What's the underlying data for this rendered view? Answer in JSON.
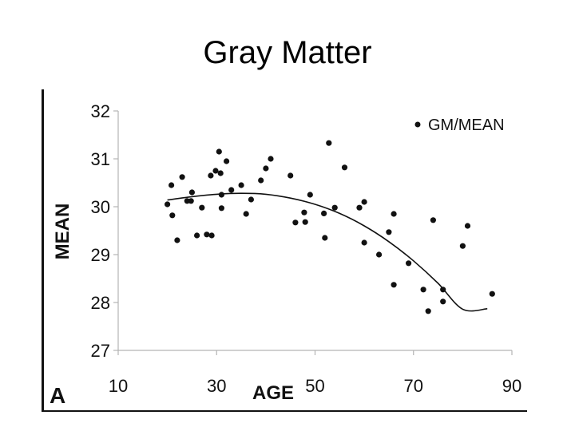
{
  "slide": {
    "title": "Gray Matter"
  },
  "panel_letter": "A",
  "chart_data": {
    "type": "scatter",
    "xlabel": "AGE",
    "ylabel": "MEAN",
    "xlim": [
      10,
      90
    ],
    "ylim": [
      27,
      32
    ],
    "x_ticks": [
      10,
      30,
      50,
      70,
      90
    ],
    "y_ticks": [
      27,
      28,
      29,
      30,
      31,
      32
    ],
    "grid": false,
    "legend": {
      "position": "top-right",
      "entries": [
        "GM/MEAN"
      ]
    },
    "colors": {
      "points": "#111111",
      "line": "#111111",
      "axis": "#b4b4b4"
    },
    "series": [
      {
        "name": "GM/MEAN",
        "points": [
          [
            20.0,
            30.05
          ],
          [
            20.8,
            30.45
          ],
          [
            21.0,
            29.82
          ],
          [
            22.0,
            29.3
          ],
          [
            23.0,
            30.62
          ],
          [
            24.0,
            30.12
          ],
          [
            24.8,
            30.12
          ],
          [
            25.0,
            30.3
          ],
          [
            26.0,
            29.4
          ],
          [
            27.0,
            29.98
          ],
          [
            28.0,
            29.42
          ],
          [
            28.8,
            30.65
          ],
          [
            29.0,
            29.4
          ],
          [
            29.8,
            30.75
          ],
          [
            30.5,
            31.15
          ],
          [
            30.8,
            30.7
          ],
          [
            31.0,
            30.25
          ],
          [
            31.0,
            29.97
          ],
          [
            32.0,
            30.95
          ],
          [
            33.0,
            30.35
          ],
          [
            35.0,
            30.45
          ],
          [
            36.0,
            29.85
          ],
          [
            37.0,
            30.15
          ],
          [
            39.0,
            30.55
          ],
          [
            40.0,
            30.8
          ],
          [
            41.0,
            31.0
          ],
          [
            45.0,
            30.65
          ],
          [
            46.0,
            29.67
          ],
          [
            47.8,
            29.88
          ],
          [
            48.0,
            29.68
          ],
          [
            49.0,
            30.25
          ],
          [
            51.8,
            29.86
          ],
          [
            52.0,
            29.35
          ],
          [
            52.8,
            31.33
          ],
          [
            54.0,
            29.98
          ],
          [
            56.0,
            30.82
          ],
          [
            59.0,
            29.98
          ],
          [
            60.0,
            30.1
          ],
          [
            60.0,
            29.25
          ],
          [
            63.0,
            29.0
          ],
          [
            65.0,
            29.47
          ],
          [
            66.0,
            29.85
          ],
          [
            66.0,
            28.37
          ],
          [
            69.0,
            28.82
          ],
          [
            72.0,
            28.27
          ],
          [
            73.0,
            27.82
          ],
          [
            74.0,
            29.72
          ],
          [
            76.0,
            28.27
          ],
          [
            76.0,
            28.02
          ],
          [
            80.0,
            29.18
          ],
          [
            81.0,
            29.6
          ],
          [
            86.0,
            28.18
          ]
        ]
      },
      {
        "fit": true,
        "points": [
          [
            20,
            30.14
          ],
          [
            25,
            30.21
          ],
          [
            30,
            30.26
          ],
          [
            35,
            30.28
          ],
          [
            40,
            30.26
          ],
          [
            45,
            30.18
          ],
          [
            50,
            30.05
          ],
          [
            55,
            29.86
          ],
          [
            60,
            29.6
          ],
          [
            65,
            29.27
          ],
          [
            70,
            28.87
          ],
          [
            75,
            28.4
          ],
          [
            80,
            27.86
          ],
          [
            85,
            27.87
          ]
        ]
      }
    ]
  }
}
